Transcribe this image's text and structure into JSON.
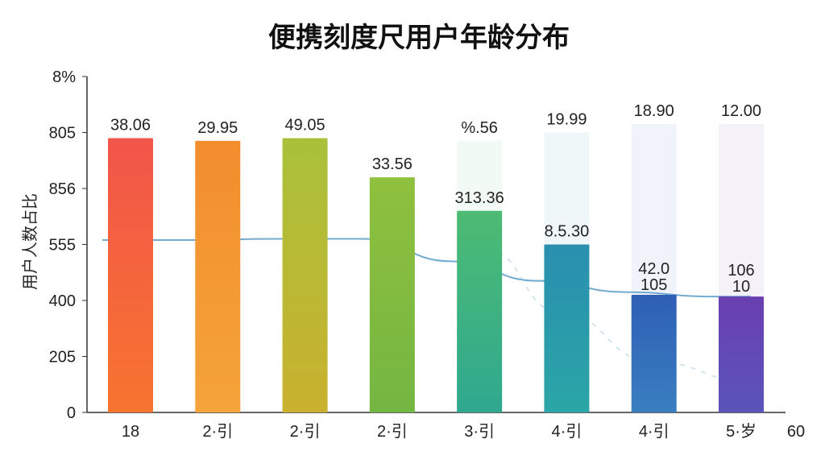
{
  "chart_data": {
    "type": "bar",
    "title": "便携刻度尺用户年龄分布",
    "ylabel": "用户人数占比",
    "xlabel": "",
    "y_tick_labels": [
      "0",
      "205",
      "400",
      "555",
      "856",
      "805",
      "8%"
    ],
    "x_tick_labels": [
      "18",
      "2·引",
      "2·引",
      "2·引",
      "3·引",
      "4·引",
      "4·引",
      "5·岁",
      "60"
    ],
    "ylim": [
      0,
      6
    ],
    "bars": [
      {
        "value": 4.9,
        "labels": [
          "38.06"
        ],
        "faded": false,
        "color_top": "#f2554a",
        "color_bottom": "#f7742f"
      },
      {
        "value": 4.85,
        "labels": [
          "29.95"
        ],
        "faded": false,
        "color_top": "#f28d2e",
        "color_bottom": "#f5a43a"
      },
      {
        "value": 4.9,
        "labels": [
          "49.05"
        ],
        "faded": false,
        "color_top": "#a9c13a",
        "color_bottom": "#c9b12e"
      },
      {
        "value": 4.2,
        "labels": [
          "33.56"
        ],
        "faded": false,
        "color_top": "#8fc03e",
        "color_bottom": "#74b642"
      },
      {
        "value": 3.6,
        "labels": [
          "313.36"
        ],
        "faded": false,
        "color_top": "#4dbb73",
        "color_bottom": "#2fa88f",
        "ghost_value": 4.85,
        "ghost_label": "%.56"
      },
      {
        "value": 3.0,
        "labels": [
          "8.5.30"
        ],
        "faded": false,
        "color_top": "#2a8fb0",
        "color_bottom": "#2aa6a6",
        "ghost_value": 5.0,
        "ghost_label": "19.99"
      },
      {
        "value": 2.1,
        "labels": [
          "42.0",
          "105"
        ],
        "faded": false,
        "color_top": "#2e5fb5",
        "color_bottom": "#3a7fc0",
        "ghost_value": 5.15,
        "ghost_label": "18.90"
      },
      {
        "value": 2.07,
        "labels": [
          "106",
          "10"
        ],
        "faded": false,
        "color_top": "#6a3fb0",
        "color_bottom": "#5a55b8",
        "ghost_value": 5.15,
        "ghost_label": "12.00"
      }
    ],
    "trend_line": [
      3.08,
      3.08,
      3.1,
      3.1,
      2.7,
      2.35,
      2.15,
      2.07
    ],
    "grid": false,
    "legend": "none"
  }
}
